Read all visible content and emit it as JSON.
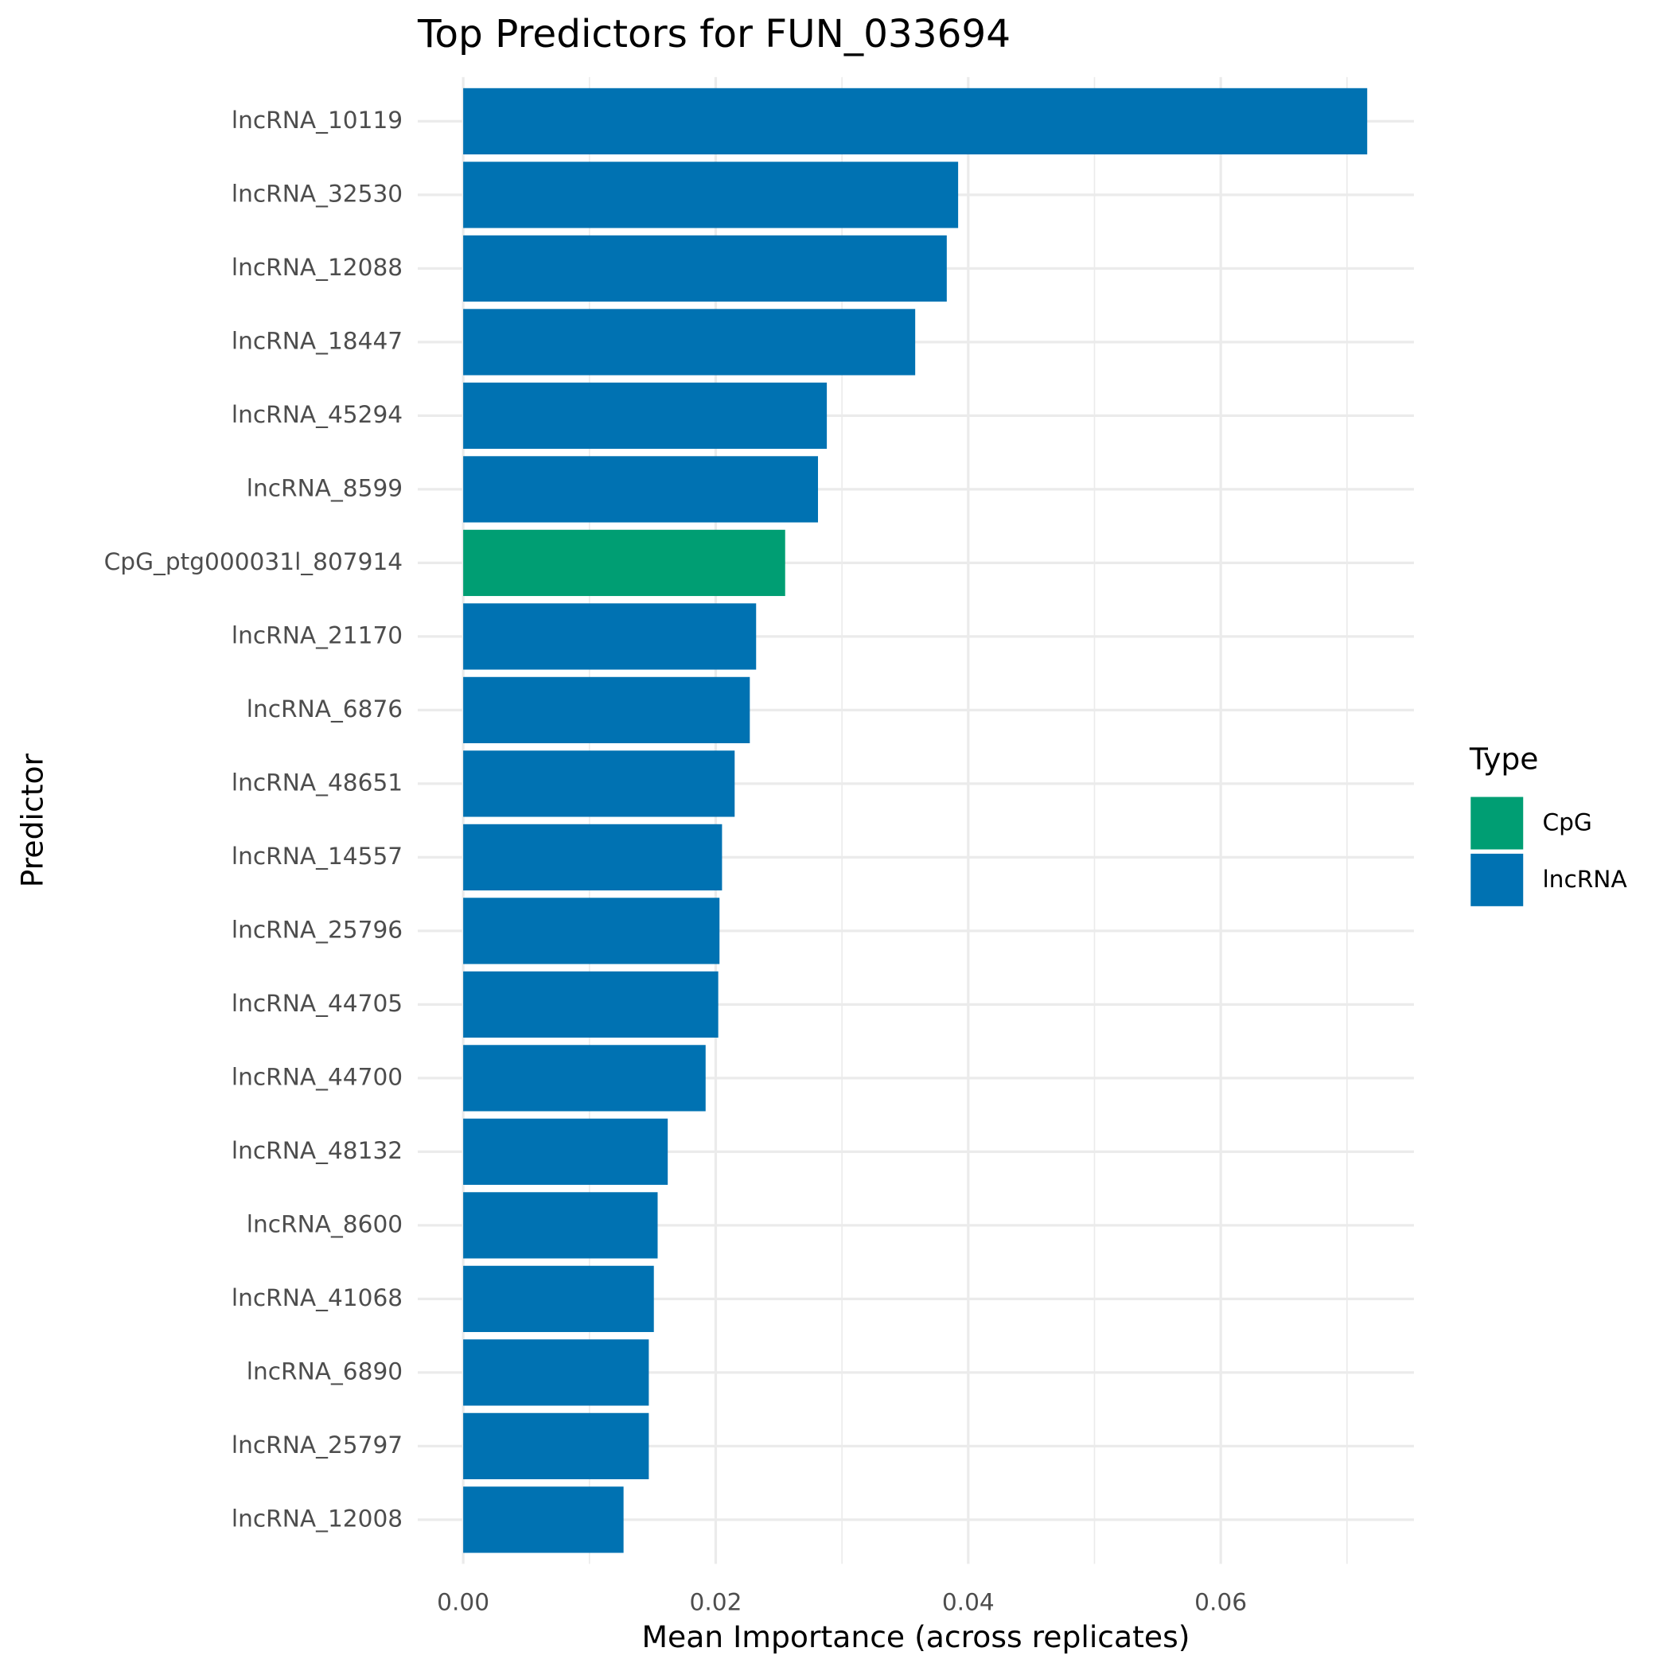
{
  "chart_data": {
    "type": "bar",
    "orientation": "horizontal",
    "title": "Top Predictors for FUN_033694",
    "x_label": "Mean Importance (across replicates)",
    "y_label": "Predictor",
    "legend_title": "Type",
    "categories": [
      "lncRNA_10119",
      "lncRNA_32530",
      "lncRNA_12088",
      "lncRNA_18447",
      "lncRNA_45294",
      "lncRNA_8599",
      "CpG_ptg000031l_807914",
      "lncRNA_21170",
      "lncRNA_6876",
      "lncRNA_48651",
      "lncRNA_14557",
      "lncRNA_25796",
      "lncRNA_44705",
      "lncRNA_44700",
      "lncRNA_48132",
      "lncRNA_8600",
      "lncRNA_41068",
      "lncRNA_6890",
      "lncRNA_25797",
      "lncRNA_12008"
    ],
    "series": [
      {
        "name": "CpG",
        "color": "#009e73",
        "values": [
          null,
          null,
          null,
          null,
          null,
          null,
          0.0255,
          null,
          null,
          null,
          null,
          null,
          null,
          null,
          null,
          null,
          null,
          null,
          null,
          null
        ]
      },
      {
        "name": "lncRNA",
        "color": "#0072b2",
        "values": [
          0.0716,
          0.0392,
          0.0383,
          0.0358,
          0.0288,
          0.0281,
          null,
          0.0232,
          0.0227,
          0.0215,
          0.0205,
          0.0203,
          0.0202,
          0.0192,
          0.0162,
          0.0154,
          0.0151,
          0.0147,
          0.0147,
          0.0127
        ]
      }
    ],
    "xlim": [
      -0.0036,
      0.0753
    ],
    "xticks": [
      {
        "value": 0,
        "label": "0.00"
      },
      {
        "value": 0.02,
        "label": "0.02"
      },
      {
        "value": 0.04,
        "label": "0.04"
      },
      {
        "value": 0.06,
        "label": "0.06"
      }
    ],
    "grid": true,
    "legend": "right"
  }
}
